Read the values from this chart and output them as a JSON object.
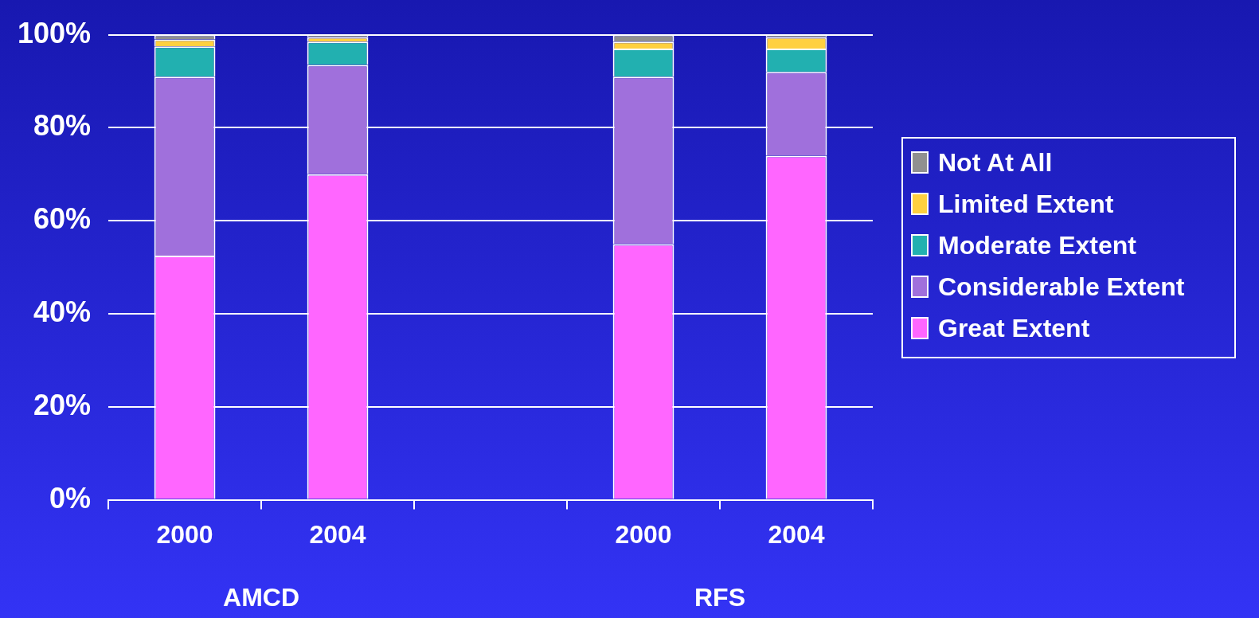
{
  "chart_data": {
    "type": "bar",
    "stacked": true,
    "categories": [
      "2000",
      "2004",
      null,
      "2000",
      "2004"
    ],
    "series": [
      {
        "name": "Great Extent",
        "color": "#ff66ff",
        "values": [
          52.5,
          70,
          null,
          55,
          74
        ]
      },
      {
        "name": "Considerable Extent",
        "color": "#a070dc",
        "values": [
          38.5,
          23.5,
          null,
          36,
          18
        ]
      },
      {
        "name": "Moderate Extent",
        "color": "#22b0b0",
        "values": [
          6.5,
          5,
          null,
          6,
          5
        ]
      },
      {
        "name": "Limited Extent",
        "color": "#ffd040",
        "values": [
          1.5,
          1,
          null,
          1.5,
          2.5
        ]
      },
      {
        "name": "Not At All",
        "color": "#909090",
        "values": [
          1,
          0.5,
          null,
          1.5,
          0.5
        ]
      }
    ],
    "ylim": [
      0,
      100
    ],
    "yticks": [
      {
        "value": 0,
        "label": "0%"
      },
      {
        "value": 20,
        "label": "20%"
      },
      {
        "value": 40,
        "label": "40%"
      },
      {
        "value": 60,
        "label": "60%"
      },
      {
        "value": 80,
        "label": "80%"
      },
      {
        "value": 100,
        "label": "100%"
      }
    ],
    "grid": "y",
    "legend": "right",
    "annotations": [
      "AMCD",
      "RFS"
    ]
  }
}
